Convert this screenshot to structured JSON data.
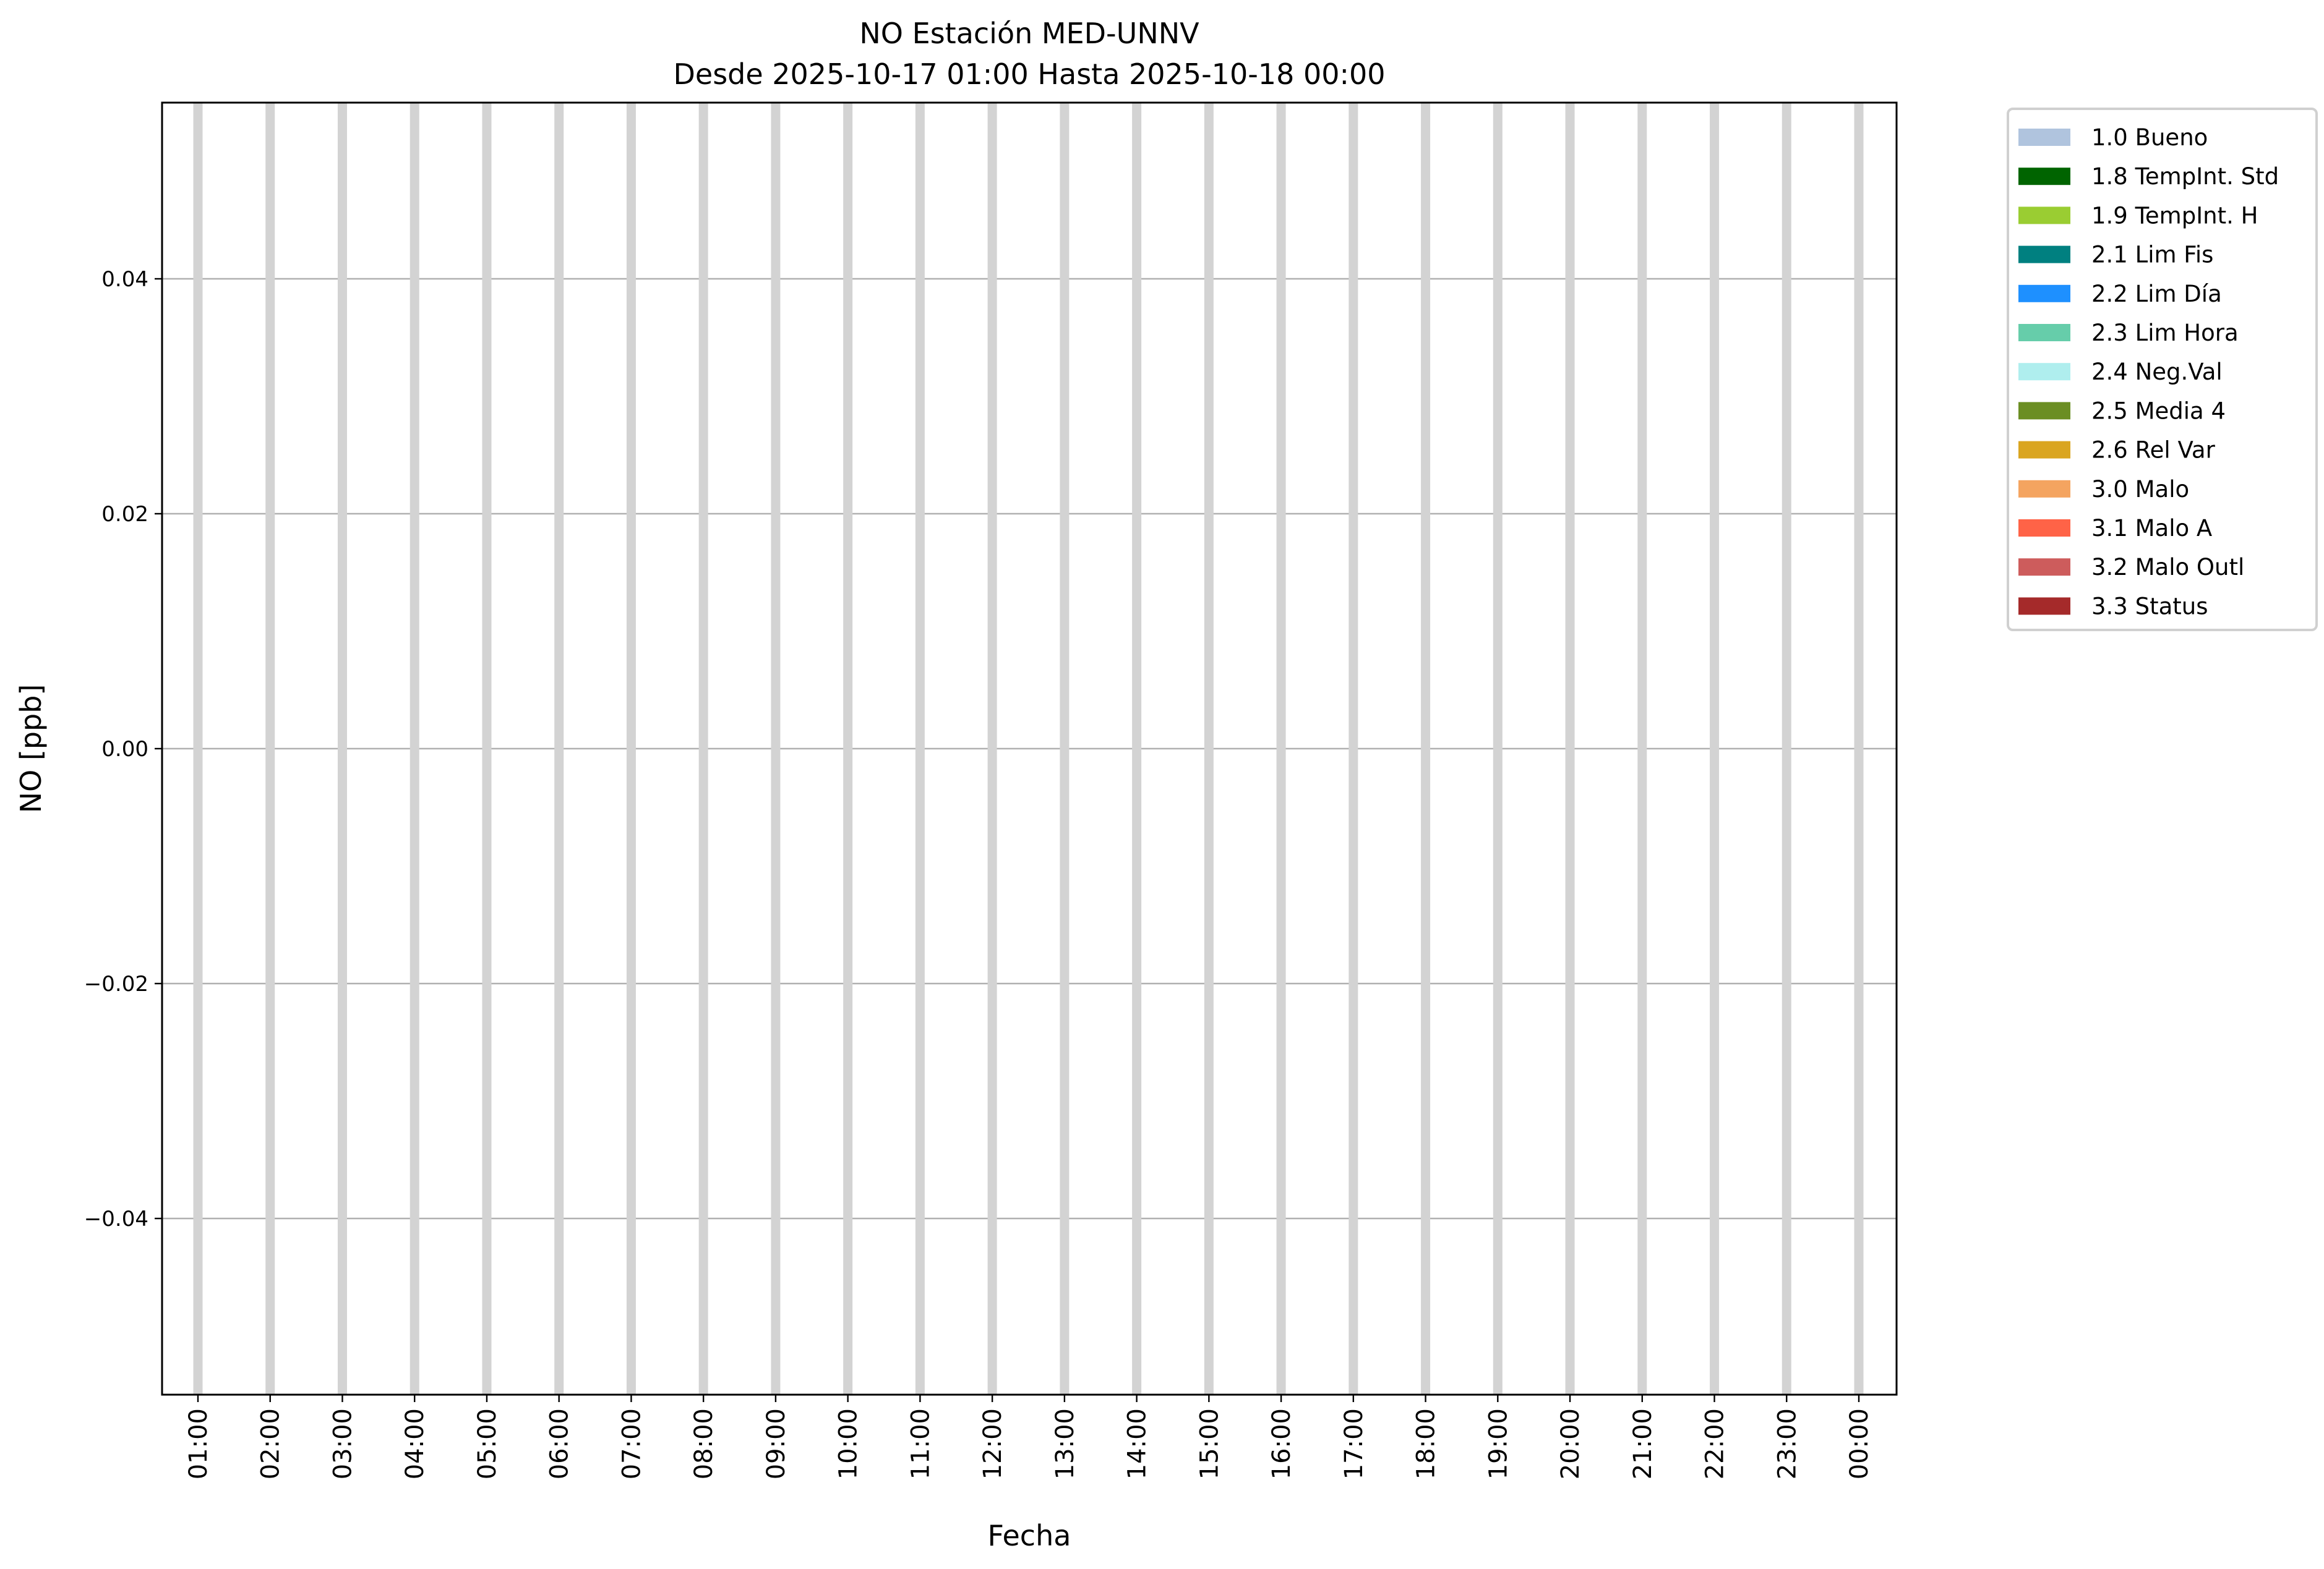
{
  "chart_data": {
    "type": "bar",
    "title": "NO Estación MED-UNNV",
    "subtitle": "Desde 2025-10-17 01:00 Hasta 2025-10-18 00:00",
    "xlabel": "Fecha",
    "ylabel": "NO [ppb]",
    "ylim": [
      -0.055,
      0.055
    ],
    "yticks": [
      0.04,
      0.02,
      0.0,
      -0.02,
      -0.04
    ],
    "ytick_labels": [
      "0.04",
      "0.02",
      "0.00",
      "−0.02",
      "−0.04"
    ],
    "categories": [
      "01:00",
      "02:00",
      "03:00",
      "04:00",
      "05:00",
      "06:00",
      "07:00",
      "08:00",
      "09:00",
      "10:00",
      "11:00",
      "12:00",
      "13:00",
      "14:00",
      "15:00",
      "16:00",
      "17:00",
      "18:00",
      "19:00",
      "20:00",
      "21:00",
      "22:00",
      "23:00",
      "00:00"
    ],
    "values": [
      null,
      null,
      null,
      null,
      null,
      null,
      null,
      null,
      null,
      null,
      null,
      null,
      null,
      null,
      null,
      null,
      null,
      null,
      null,
      null,
      null,
      null,
      null,
      null
    ],
    "no_data_band_color": "#d3d3d3",
    "grid": true,
    "legend_placement": "outside-top-right",
    "legend": [
      {
        "label": "1.0 Bueno",
        "color": "#b0c4de"
      },
      {
        "label": "1.8 TempInt. Std",
        "color": "#006400"
      },
      {
        "label": "1.9 TempInt. H",
        "color": "#9acd32"
      },
      {
        "label": "2.1 Lim Fis",
        "color": "#008080"
      },
      {
        "label": "2.2 Lim Día",
        "color": "#1e90ff"
      },
      {
        "label": "2.3 Lim Hora",
        "color": "#66cdaa"
      },
      {
        "label": "2.4 Neg.Val",
        "color": "#afeeee"
      },
      {
        "label": "2.5 Media 4",
        "color": "#6b8e23"
      },
      {
        "label": "2.6 Rel Var",
        "color": "#daa520"
      },
      {
        "label": "3.0 Malo",
        "color": "#f4a460"
      },
      {
        "label": "3.1 Malo A",
        "color": "#ff6347"
      },
      {
        "label": "3.2 Malo Outl",
        "color": "#cd5c5c"
      },
      {
        "label": "3.3 Status",
        "color": "#a52a2a"
      }
    ]
  }
}
